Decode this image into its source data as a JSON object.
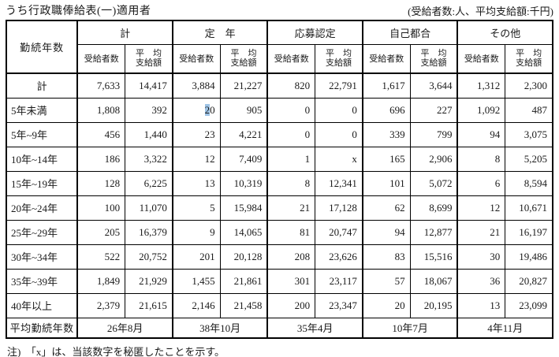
{
  "page": {
    "title": "うち行政職俸給表(一)適用者",
    "unit_note": "(受給者数:人、平均支給額:千円)",
    "footnote": "注)　「x」は、当該数字を秘匿したことを示す。"
  },
  "table": {
    "corner_header": "勤続年数",
    "groups": [
      "計",
      "定　年",
      "応募認定",
      "自己都合",
      "その他"
    ],
    "sub_headers": {
      "recipients": "受給者数",
      "average": "平　均\n支給額"
    },
    "rows": [
      {
        "label": "計",
        "center": true,
        "values": [
          "7,633",
          "14,417",
          "3,884",
          "21,227",
          "820",
          "22,791",
          "1,617",
          "3,644",
          "1,312",
          "2,300"
        ]
      },
      {
        "label": "5年未満",
        "values": [
          "1,808",
          "392",
          "20",
          "905",
          "0",
          "0",
          "696",
          "227",
          "1,092",
          "487"
        ]
      },
      {
        "label": "5年~9年",
        "values": [
          "456",
          "1,440",
          "23",
          "4,221",
          "0",
          "0",
          "339",
          "799",
          "94",
          "3,075"
        ]
      },
      {
        "label": "10年~14年",
        "values": [
          "186",
          "3,322",
          "12",
          "7,409",
          "1",
          "x",
          "165",
          "2,906",
          "8",
          "5,205"
        ]
      },
      {
        "label": "15年~19年",
        "values": [
          "128",
          "6,225",
          "13",
          "10,319",
          "8",
          "12,341",
          "101",
          "5,072",
          "6",
          "8,594"
        ]
      },
      {
        "label": "20年~24年",
        "values": [
          "100",
          "11,070",
          "5",
          "15,984",
          "21",
          "17,128",
          "62",
          "8,699",
          "12",
          "10,671"
        ]
      },
      {
        "label": "25年~29年",
        "values": [
          "205",
          "16,379",
          "9",
          "14,065",
          "81",
          "20,747",
          "94",
          "12,877",
          "21",
          "16,197"
        ]
      },
      {
        "label": "30年~34年",
        "values": [
          "522",
          "20,752",
          "201",
          "20,128",
          "208",
          "23,626",
          "83",
          "15,516",
          "30",
          "19,486"
        ]
      },
      {
        "label": "35年~39年",
        "values": [
          "1,849",
          "21,929",
          "1,455",
          "21,861",
          "301",
          "23,117",
          "57",
          "18,067",
          "36",
          "20,827"
        ]
      },
      {
        "label": "40年以上",
        "values": [
          "2,379",
          "21,615",
          "2,146",
          "21,458",
          "200",
          "23,347",
          "20",
          "20,195",
          "13",
          "23,099"
        ]
      }
    ],
    "highlight": {
      "row_index": 1,
      "col_index": 2,
      "highlighted_text": "2",
      "rest_text": "0",
      "highlight_color": "#9dc3e6"
    },
    "footer": {
      "label": "平均勤続年数",
      "values": [
        "26年8月",
        "38年10月",
        "35年4月",
        "10年7月",
        "4年11月"
      ]
    }
  }
}
